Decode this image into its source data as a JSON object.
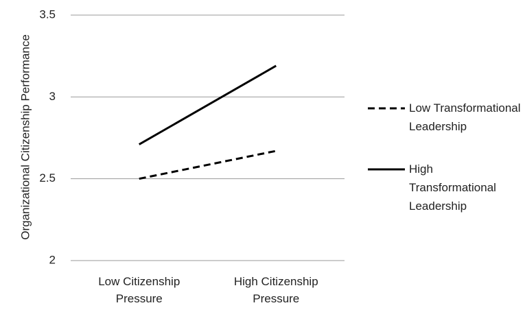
{
  "chart_data": {
    "type": "line",
    "y_label": "Organizational Citizenship Performance",
    "categories": [
      "Low Citizenship Pressure",
      "High Citizenship Pressure"
    ],
    "series": [
      {
        "name": "Low Transformational Leadership",
        "color": "#000000",
        "line_style": "dashed",
        "values": [
          2.5,
          2.67
        ]
      },
      {
        "name": "High Transformational Leadership",
        "color": "#000000",
        "line_style": "solid",
        "values": [
          2.71,
          3.19
        ]
      }
    ],
    "ylim": [
      2,
      3.5
    ],
    "yticks": [
      2,
      2.5,
      3,
      3.5
    ],
    "grid": true,
    "legend": "right"
  }
}
